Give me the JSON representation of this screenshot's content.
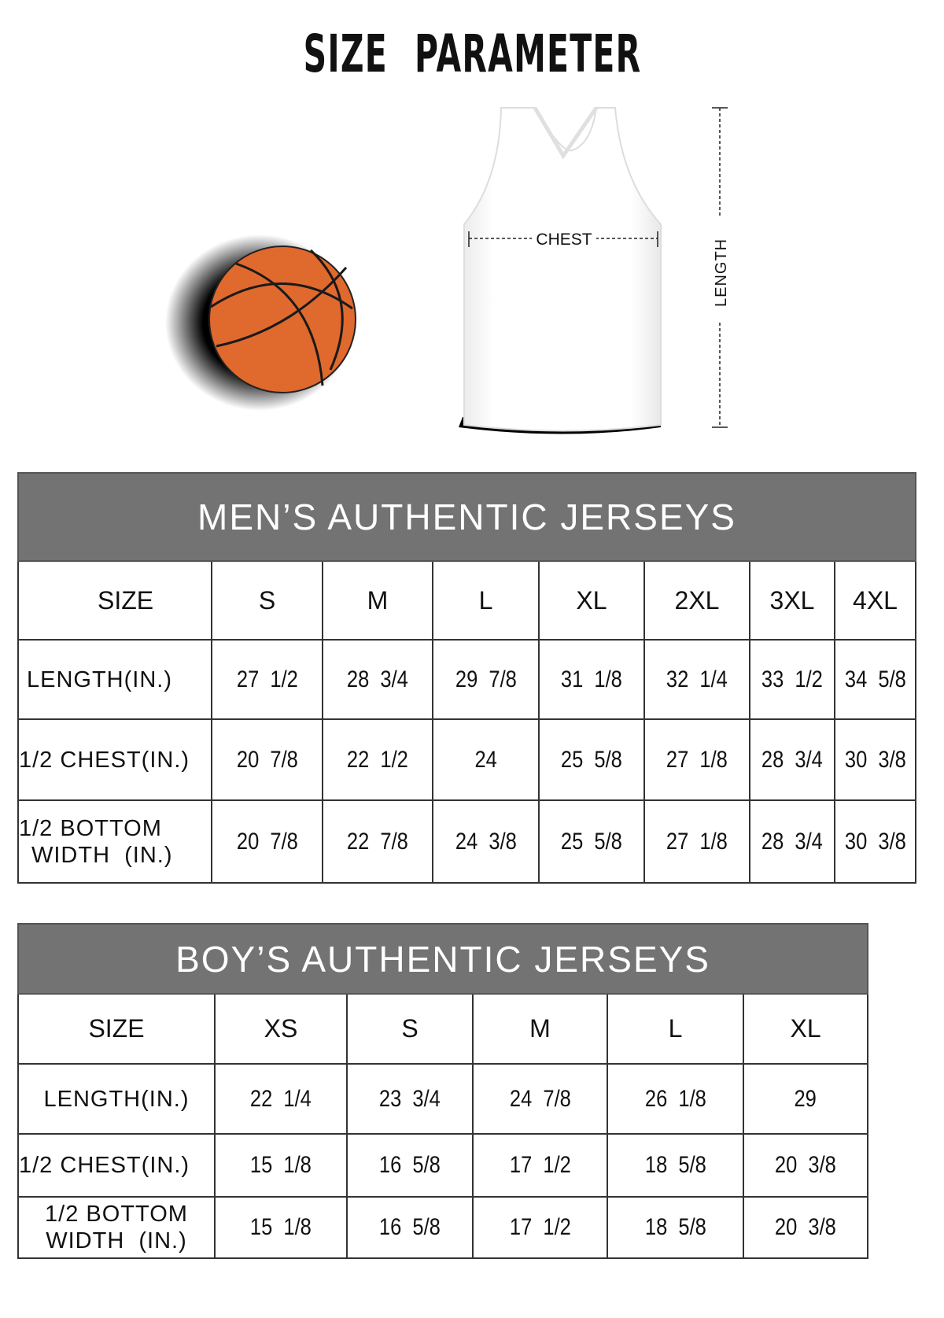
{
  "title": "SIZE PARAMETER",
  "illustration": {
    "chest_label": "CHEST",
    "length_label": "LENGTH",
    "colors": {
      "ball": "#e0692d",
      "ball_lines": "#1a1a1a",
      "jersey": "#ffffff"
    }
  },
  "mens_table": {
    "title": "MEN’S AUTHENTIC JERSEYS",
    "header_color": "#737373",
    "size_label": "SIZE",
    "sizes": [
      "S",
      "M",
      "L",
      "XL",
      "2XL",
      "3XL",
      "4XL"
    ],
    "rows": [
      {
        "label": "LENGTH(IN.)",
        "values": [
          "27  1/2",
          "28  3/4",
          "29  7/8",
          "31  1/8",
          "32  1/4",
          "33  1/2",
          "34  5/8"
        ]
      },
      {
        "label": "1/2 CHEST(IN.)",
        "values": [
          "20  7/8",
          "22  1/2",
          "24",
          "25  5/8",
          "27  1/8",
          "28  3/4",
          "30  3/8"
        ]
      },
      {
        "label": "1/2 BOTTOM WIDTH  (IN.)",
        "label_line1": "1/2 BOTTOM",
        "label_line2": "WIDTH  (IN.)",
        "values": [
          "20  7/8",
          "22  7/8",
          "24  3/8",
          "25  5/8",
          "27  1/8",
          "28  3/4",
          "30  3/8"
        ]
      }
    ]
  },
  "boys_table": {
    "title": "BOY’S AUTHENTIC JERSEYS",
    "header_color": "#737373",
    "size_label": "SIZE",
    "sizes": [
      "XS",
      "S",
      "M",
      "L",
      "XL"
    ],
    "rows": [
      {
        "label": "LENGTH(IN.)",
        "values": [
          "22  1/4",
          "23  3/4",
          "24  7/8",
          "26  1/8",
          "29"
        ]
      },
      {
        "label": "1/2 CHEST(IN.)",
        "values": [
          "15  1/8",
          "16  5/8",
          "17  1/2",
          "18  5/8",
          "20  3/8"
        ]
      },
      {
        "label": "1/2 BOTTOM WIDTH  (IN.)",
        "label_line1": "1/2 BOTTOM",
        "label_line2": "WIDTH  (IN.)",
        "values": [
          "15  1/8",
          "16  5/8",
          "17  1/2",
          "18  5/8",
          "20  3/8"
        ]
      }
    ]
  }
}
